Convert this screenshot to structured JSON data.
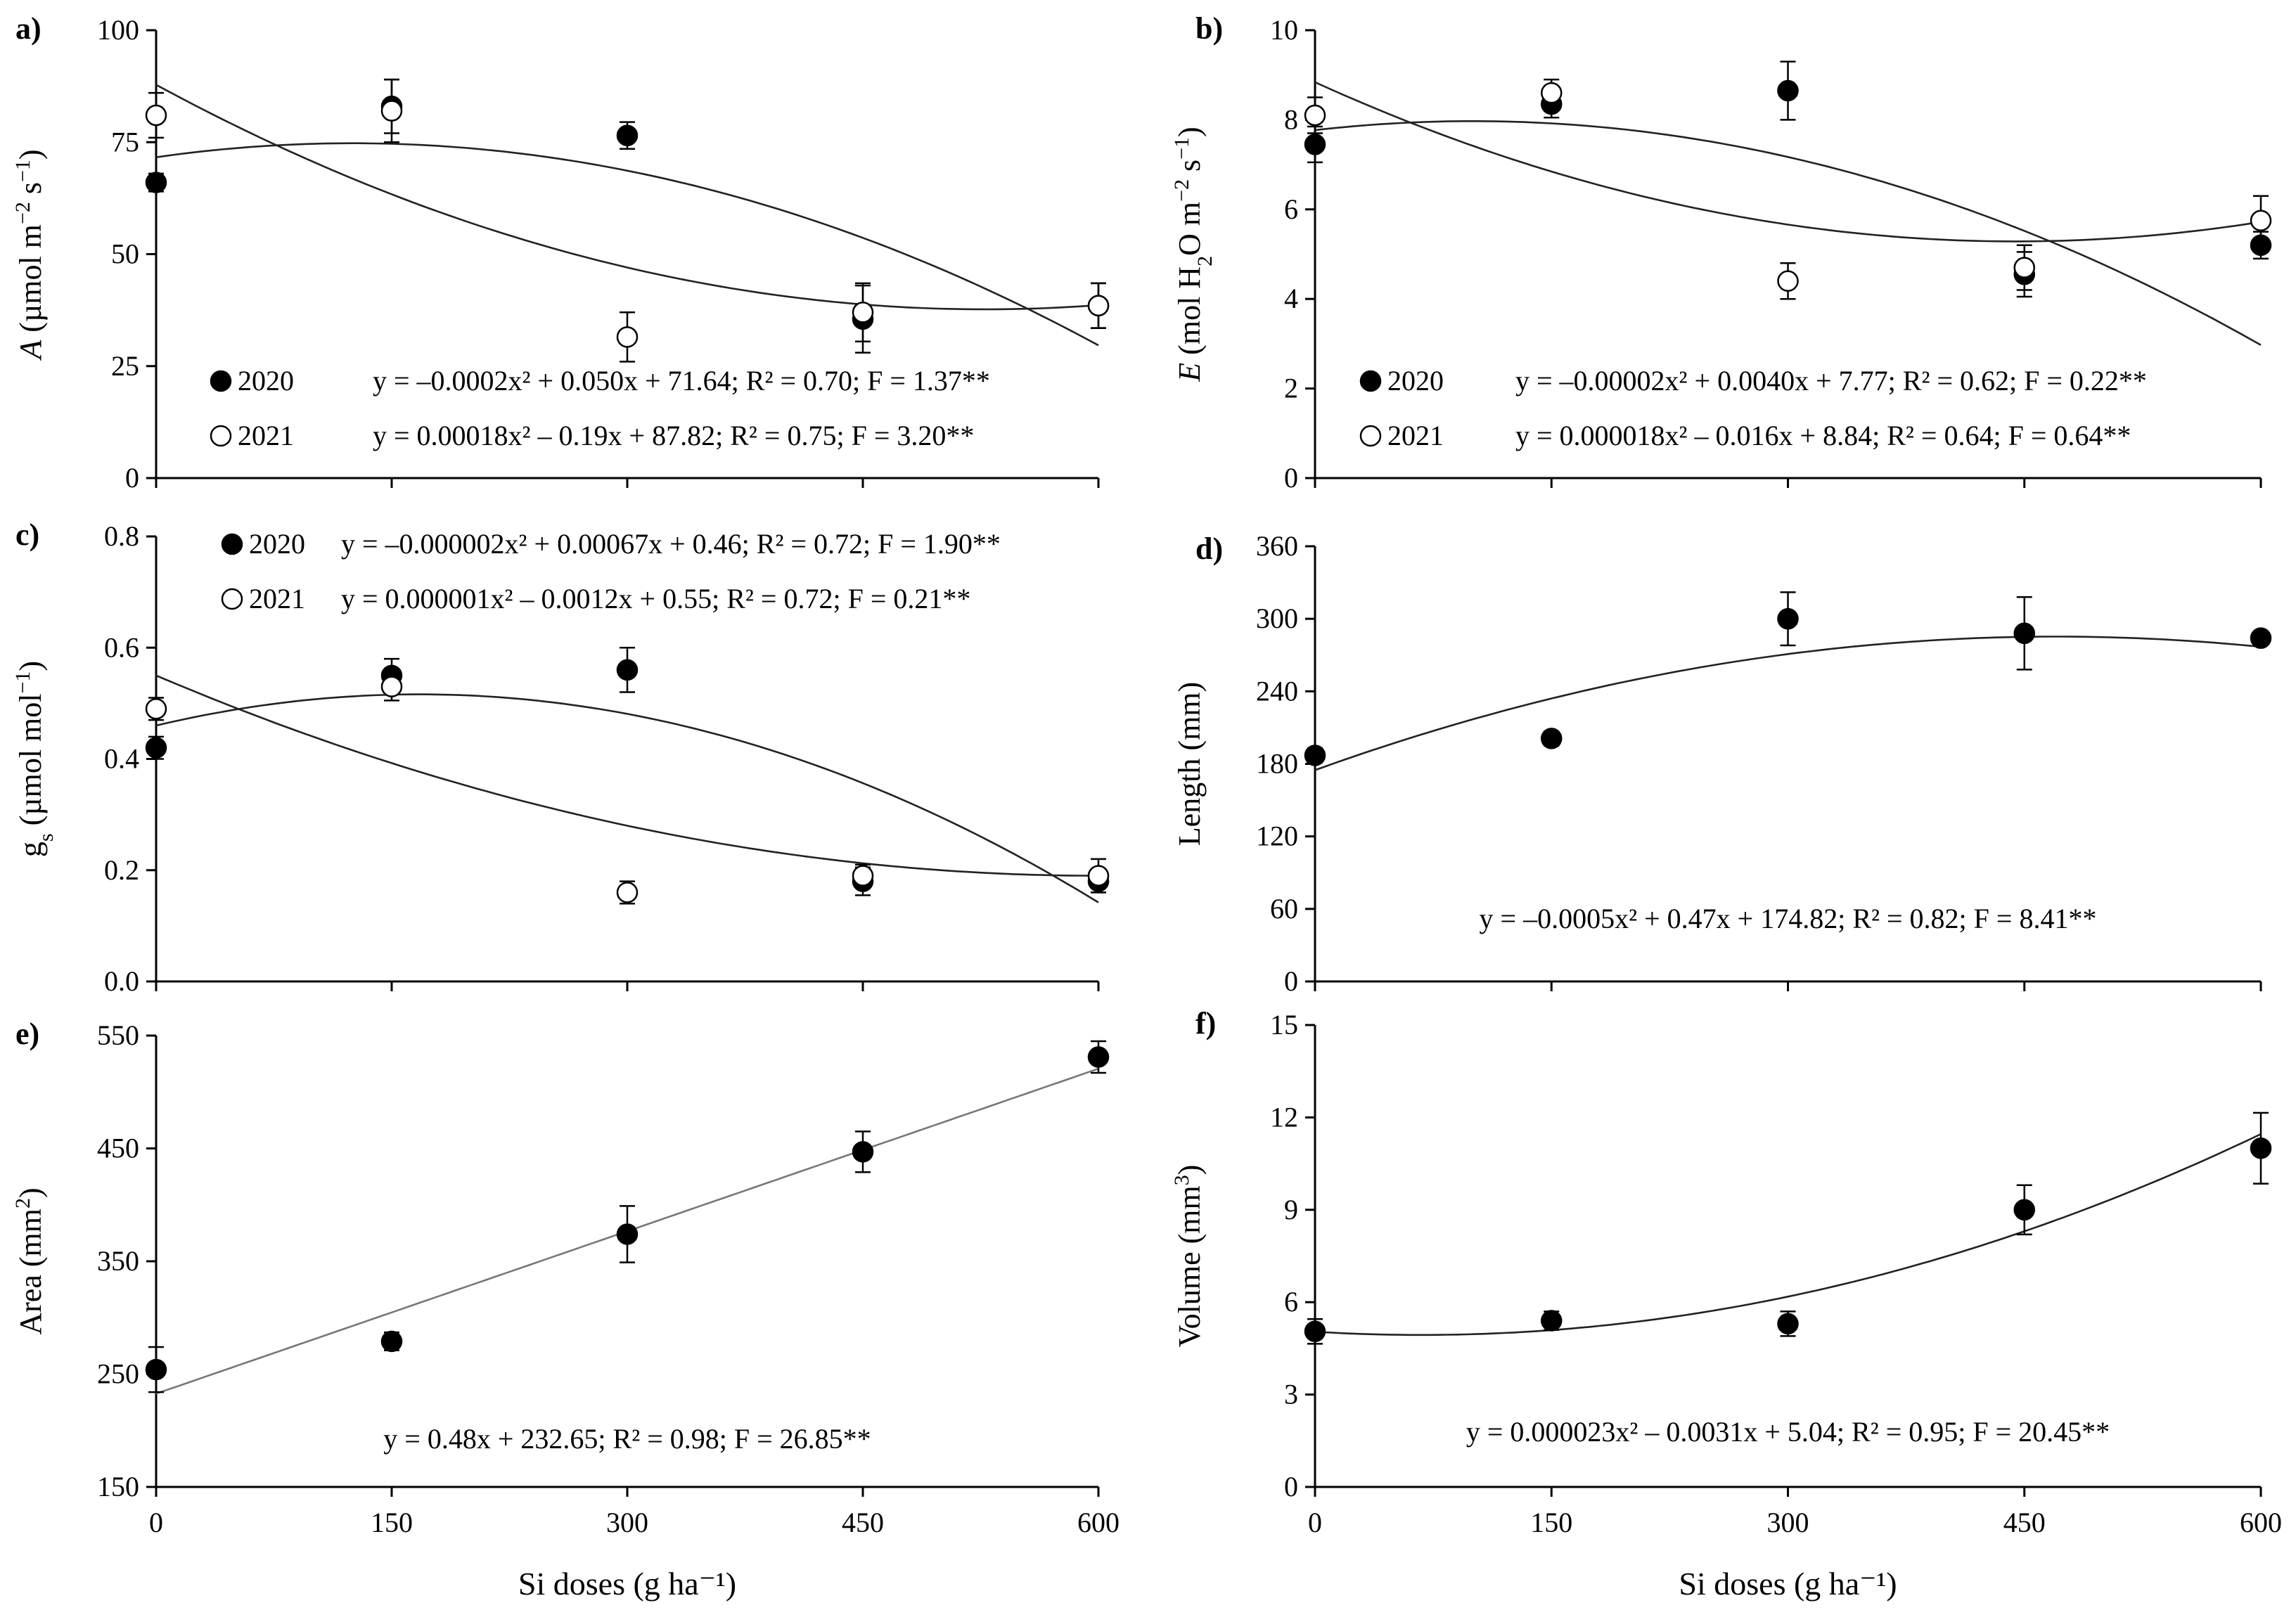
{
  "figure": {
    "xlabel": "Si doses (g ha⁻¹)"
  },
  "chart_data": [
    {
      "panel": "a)",
      "type": "scatter",
      "ylabel": "A (µmol m⁻² s⁻¹)",
      "ylabel_parts": [
        {
          "t": "A",
          "s": "i"
        },
        {
          "t": " (µmol m"
        },
        {
          "t": "−2",
          "s": "sup"
        },
        {
          "t": " s"
        },
        {
          "t": "−1",
          "s": "sup"
        },
        {
          "t": ")"
        }
      ],
      "xlim": [
        0,
        600
      ],
      "ylim": [
        0,
        100
      ],
      "xticks": [
        0,
        150,
        300,
        450,
        600
      ],
      "xticklabels": [
        "0",
        "150",
        "300",
        "450",
        "600"
      ],
      "yticks": [
        0,
        25,
        50,
        75,
        100
      ],
      "yticklabels": [
        "0",
        "25",
        "50",
        "75",
        "100"
      ],
      "series": [
        {
          "name": "2020",
          "marker": "filled",
          "x": [
            0,
            150,
            300,
            450,
            600
          ],
          "y": [
            66,
            83,
            76.5,
            35.5,
            38.5
          ],
          "err": [
            2,
            6,
            3,
            7.5,
            5
          ],
          "fit": {
            "a": -0.0002,
            "b": 0.05,
            "c": 71.64
          },
          "equation": "y = –0.0002x² + 0.050x + 71.64; R² = 0.70; F = 1.37**"
        },
        {
          "name": "2021",
          "marker": "open",
          "x": [
            0,
            150,
            300,
            450,
            600
          ],
          "y": [
            81,
            82,
            31.5,
            37,
            38.5
          ],
          "err": [
            5,
            7,
            5.5,
            6.5,
            5
          ],
          "fit": {
            "a": 0.00018,
            "b": -0.19,
            "c": 87.82
          },
          "equation": "y = 0.00018x² – 0.19x + 87.82; R² = 0.75; F = 3.20**"
        }
      ]
    },
    {
      "panel": "b)",
      "type": "scatter",
      "ylabel": "E (mol H₂O m⁻² s⁻¹)",
      "ylabel_parts": [
        {
          "t": "E",
          "s": "i"
        },
        {
          "t": " (mol H"
        },
        {
          "t": "2",
          "s": "sub"
        },
        {
          "t": "O m"
        },
        {
          "t": "−2",
          "s": "sup"
        },
        {
          "t": " s"
        },
        {
          "t": "−1",
          "s": "sup"
        },
        {
          "t": ")"
        }
      ],
      "xlim": [
        0,
        600
      ],
      "ylim": [
        0,
        10
      ],
      "xticks": [
        0,
        150,
        300,
        450,
        600
      ],
      "xticklabels": [
        "0",
        "150",
        "300",
        "450",
        "600"
      ],
      "yticks": [
        0,
        2,
        4,
        6,
        8,
        10
      ],
      "yticklabels": [
        "0",
        "2",
        "4",
        "6",
        "8",
        "10"
      ],
      "series": [
        {
          "name": "2020",
          "marker": "filled",
          "x": [
            0,
            150,
            300,
            450,
            600
          ],
          "y": [
            7.45,
            8.35,
            8.65,
            4.55,
            5.2
          ],
          "err": [
            0.4,
            0.3,
            0.65,
            0.5,
            0.3
          ],
          "fit": {
            "a": -2e-05,
            "b": 0.004,
            "c": 7.77
          },
          "equation": "y = –0.00002x² + 0.0040x + 7.77; R² = 0.62; F = 0.22**"
        },
        {
          "name": "2021",
          "marker": "open",
          "x": [
            0,
            150,
            300,
            450,
            600
          ],
          "y": [
            8.1,
            8.6,
            4.4,
            4.7,
            5.75
          ],
          "err": [
            0.4,
            0.3,
            0.4,
            0.5,
            0.55
          ],
          "fit": {
            "a": 1.8e-05,
            "b": -0.016,
            "c": 8.84
          },
          "equation": "y = 0.000018x² – 0.016x + 8.84; R² = 0.64; F = 0.64**"
        }
      ]
    },
    {
      "panel": "c)",
      "type": "scatter",
      "ylabel": "gs (µmol mol⁻¹)",
      "ylabel_parts": [
        {
          "t": "g"
        },
        {
          "t": "s",
          "s": "sub"
        },
        {
          "t": " (µmol mol"
        },
        {
          "t": "−1",
          "s": "sup"
        },
        {
          "t": ")"
        }
      ],
      "xlim": [
        0,
        600
      ],
      "ylim": [
        0,
        0.8
      ],
      "xticks": [
        0,
        150,
        300,
        450,
        600
      ],
      "xticklabels": [
        "0",
        "150",
        "300",
        "450",
        "600"
      ],
      "yticks": [
        0,
        0.2,
        0.4,
        0.6,
        0.8
      ],
      "yticklabels": [
        "0.0",
        "0.2",
        "0.4",
        "0.6",
        "0.8"
      ],
      "series": [
        {
          "name": "2020",
          "marker": "filled",
          "x": [
            0,
            150,
            300,
            450,
            600
          ],
          "y": [
            0.42,
            0.55,
            0.56,
            0.18,
            0.18
          ],
          "err": [
            0.02,
            0.03,
            0.04,
            0.025,
            0.02
          ],
          "fit": {
            "a": -2e-06,
            "b": 0.00067,
            "c": 0.46
          },
          "equation": "y = –0.000002x² + 0.00067x + 0.46; R² = 0.72; F = 1.90**"
        },
        {
          "name": "2021",
          "marker": "open",
          "x": [
            0,
            150,
            300,
            450,
            600
          ],
          "y": [
            0.49,
            0.53,
            0.16,
            0.19,
            0.19
          ],
          "err": [
            0.02,
            0.025,
            0.02,
            0.02,
            0.03
          ],
          "fit": {
            "a": 1e-06,
            "b": -0.0012,
            "c": 0.55
          },
          "equation": "y = 0.000001x² – 0.0012x + 0.55; R² = 0.72; F = 0.21**"
        }
      ]
    },
    {
      "panel": "d)",
      "type": "scatter",
      "ylabel": "Length (mm)",
      "ylabel_parts": [
        {
          "t": "Length (mm)"
        }
      ],
      "xlim": [
        0,
        600
      ],
      "ylim": [
        0,
        360
      ],
      "xticks": [
        0,
        150,
        300,
        450,
        600
      ],
      "xticklabels": [
        "0",
        "150",
        "300",
        "450",
        "600"
      ],
      "yticks": [
        0,
        60,
        120,
        180,
        240,
        300,
        360
      ],
      "yticklabels": [
        "0",
        "60",
        "120",
        "180",
        "240",
        "300",
        "360"
      ],
      "series": [
        {
          "name": "",
          "marker": "filled",
          "x": [
            0,
            150,
            300,
            450,
            600
          ],
          "y": [
            187,
            201,
            300,
            288,
            284
          ],
          "err": [
            6,
            6,
            22,
            30,
            5
          ],
          "fit": {
            "a": -0.0005,
            "b": 0.47,
            "c": 174.82
          },
          "equation": "y = –0.0005x² + 0.47x + 174.82; R² = 0.82; F = 8.41**"
        }
      ]
    },
    {
      "panel": "e)",
      "type": "scatter",
      "ylabel": "Area (mm²)",
      "ylabel_parts": [
        {
          "t": "Area (mm"
        },
        {
          "t": "2",
          "s": "sup"
        },
        {
          "t": ")"
        }
      ],
      "xlim": [
        0,
        600
      ],
      "ylim": [
        150,
        550
      ],
      "xticks": [
        0,
        150,
        300,
        450,
        600
      ],
      "xticklabels": [
        "0",
        "150",
        "300",
        "450",
        "600"
      ],
      "yticks": [
        150,
        250,
        350,
        450,
        550
      ],
      "yticklabels": [
        "150",
        "250",
        "350",
        "450",
        "550"
      ],
      "series": [
        {
          "name": "",
          "marker": "filled",
          "x": [
            0,
            150,
            300,
            450,
            600
          ],
          "y": [
            254,
            279,
            374,
            447,
            531
          ],
          "err": [
            20,
            8,
            25,
            18,
            14
          ],
          "fit": {
            "a": 0,
            "b": 0.48,
            "c": 232.65
          },
          "equation": "y = 0.48x + 232.65; R² = 0.98; F = 26.85**"
        }
      ]
    },
    {
      "panel": "f)",
      "type": "scatter",
      "ylabel": "Volume (mm³)",
      "ylabel_parts": [
        {
          "t": "Volume (mm"
        },
        {
          "t": "3",
          "s": "sup"
        },
        {
          "t": ")"
        }
      ],
      "xlim": [
        0,
        600
      ],
      "ylim": [
        0,
        15
      ],
      "xticks": [
        0,
        150,
        300,
        450,
        600
      ],
      "xticklabels": [
        "0",
        "150",
        "300",
        "450",
        "600"
      ],
      "yticks": [
        0,
        3,
        6,
        9,
        12,
        15
      ],
      "yticklabels": [
        "0",
        "3",
        "6",
        "9",
        "12",
        "15"
      ],
      "series": [
        {
          "name": "",
          "marker": "filled",
          "x": [
            0,
            150,
            300,
            450,
            600
          ],
          "y": [
            5.05,
            5.4,
            5.3,
            9.0,
            11.0
          ],
          "err": [
            0.4,
            0.3,
            0.4,
            0.8,
            1.15
          ],
          "fit": {
            "a": 2.3e-05,
            "b": -0.0031,
            "c": 5.04
          },
          "equation": "y = 0.000023x² – 0.0031x + 5.04; R² = 0.95; F = 20.45**"
        }
      ]
    }
  ]
}
